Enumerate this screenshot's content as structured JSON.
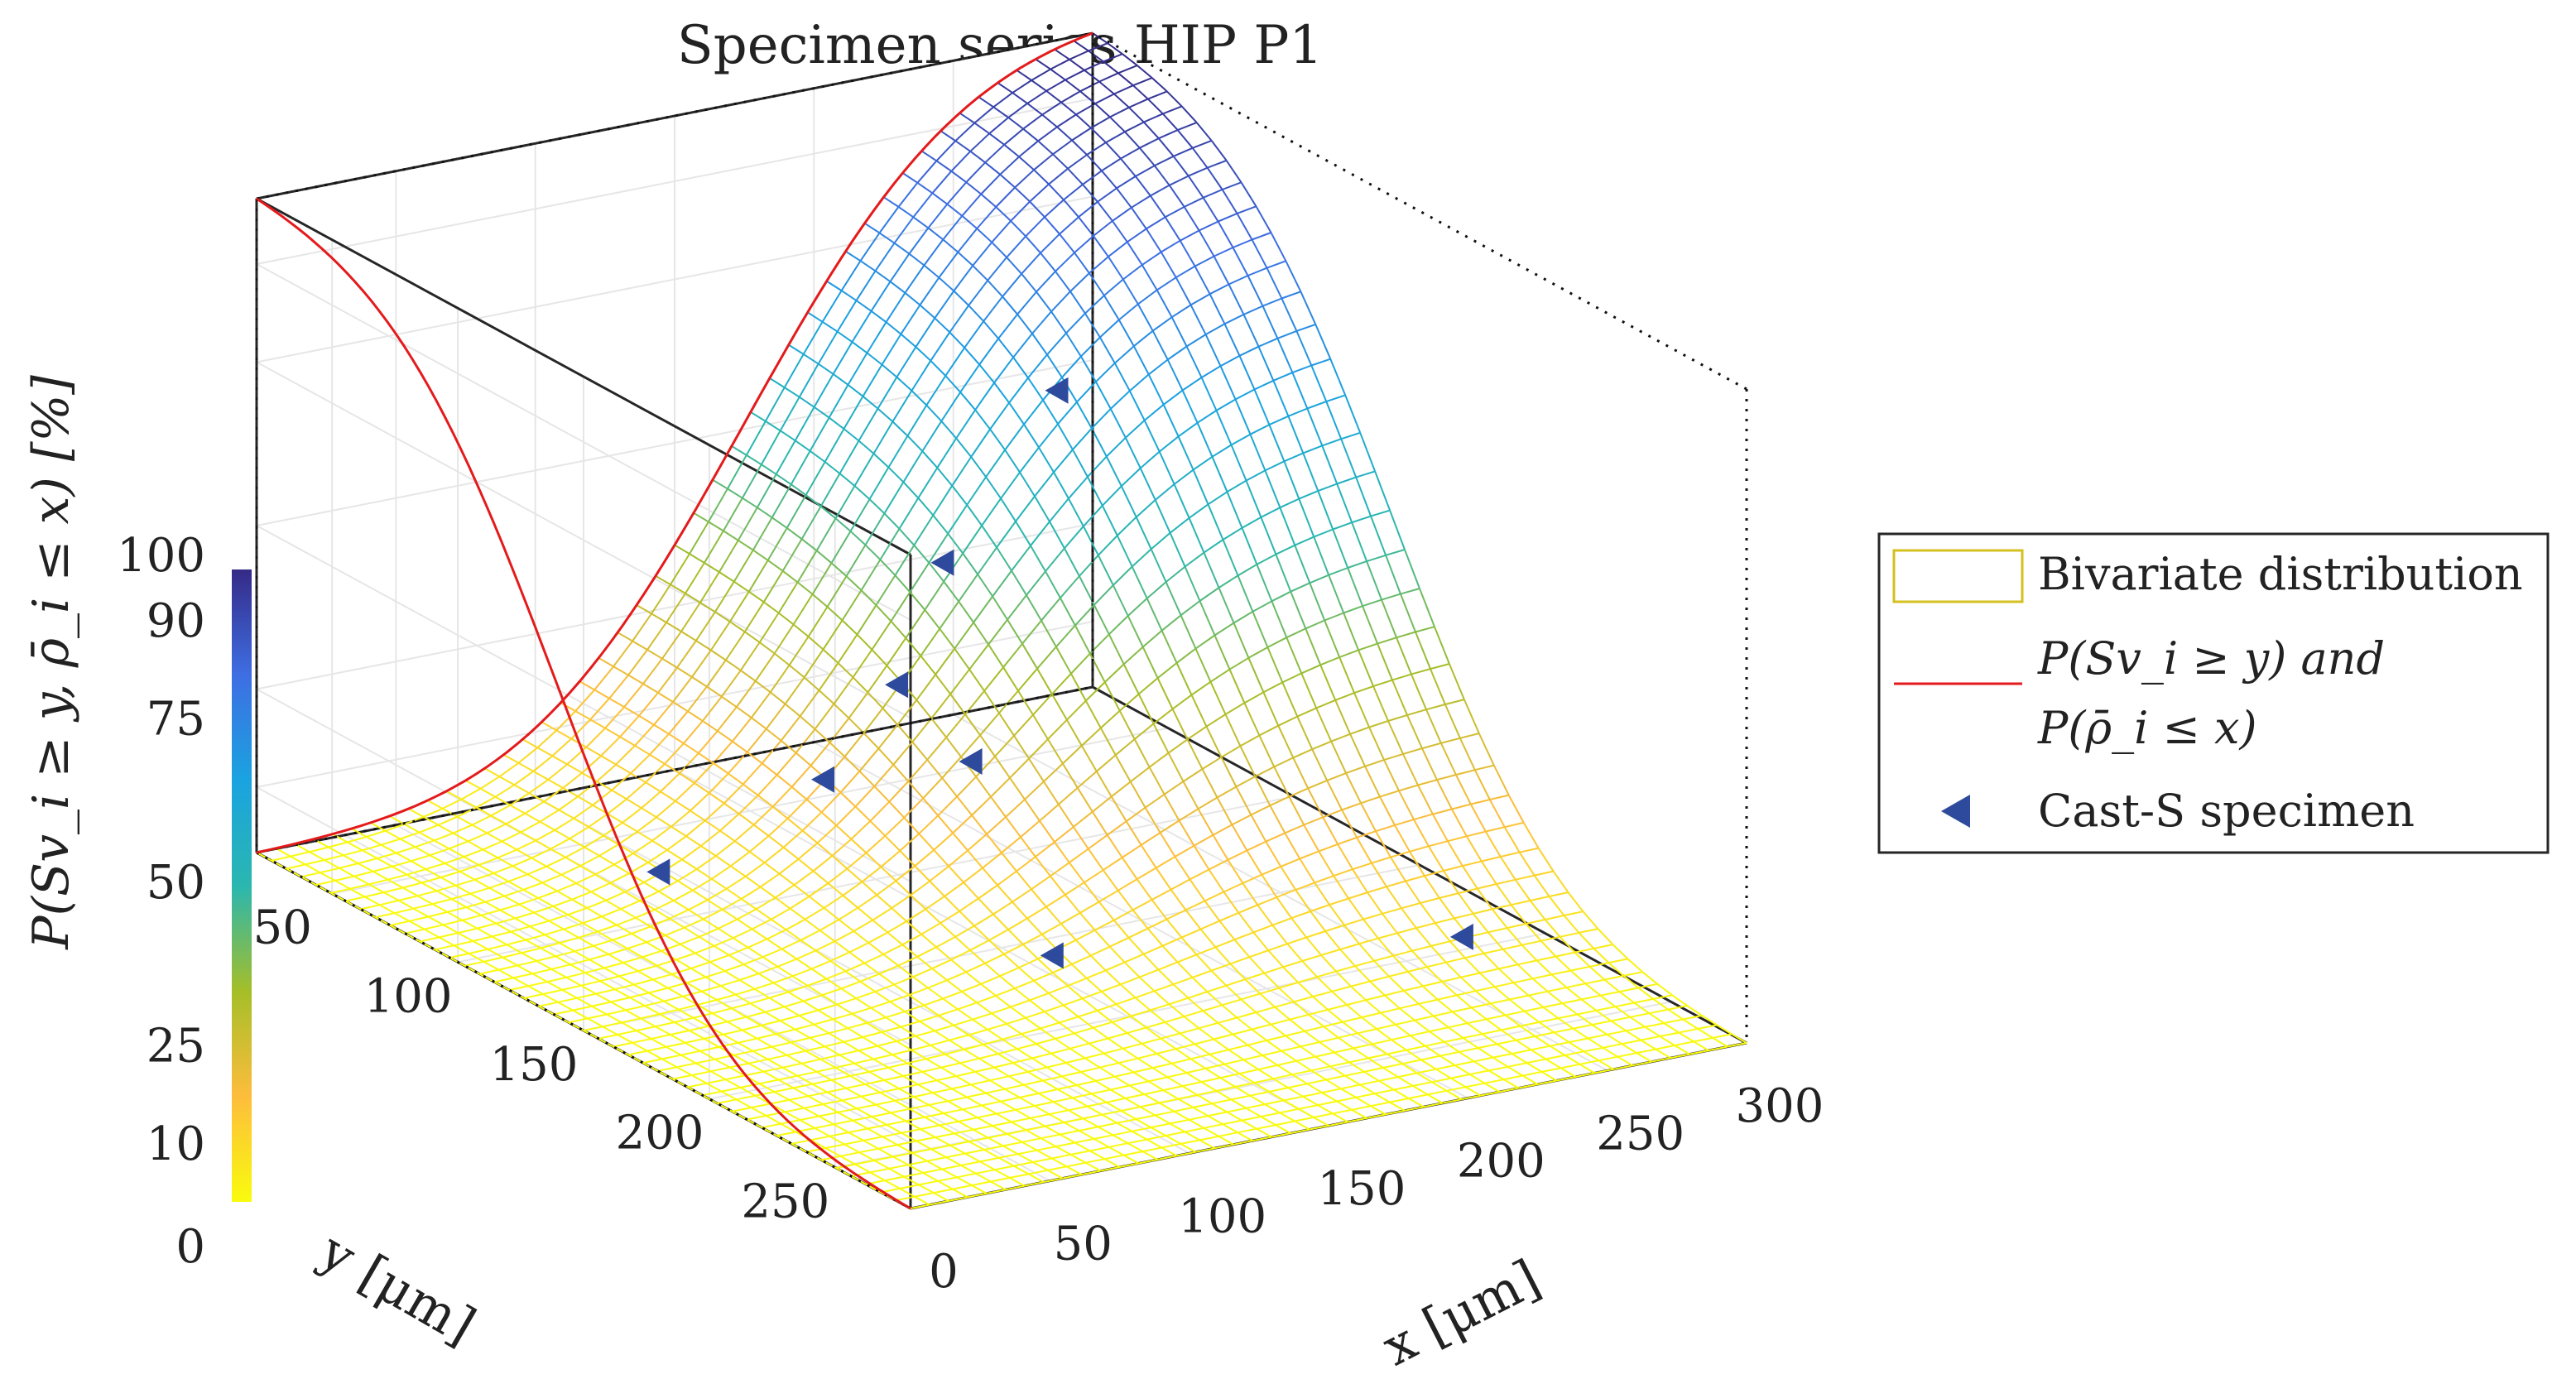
{
  "chart_data": {
    "type": "surface3d",
    "title": "Specimen series HIP P1",
    "xlabel": "x [μm]",
    "ylabel": "y [μm]",
    "zlabel": "P(Sv_i ≥ y, ρ̄_i ≤ x) [%]",
    "xlim": [
      0,
      300
    ],
    "ylim": [
      20,
      280
    ],
    "zlim": [
      0,
      100
    ],
    "x_ticks": [
      "0",
      "50",
      "100",
      "150",
      "200",
      "250",
      "300"
    ],
    "y_ticks": [
      "50",
      "100",
      "150",
      "200",
      "250"
    ],
    "z_ticks": [
      "0",
      "10",
      "25",
      "50",
      "75",
      "90",
      "100"
    ],
    "z_tick_values": [
      0,
      10,
      25,
      50,
      75,
      90,
      100
    ],
    "colorbar": {
      "min": 0,
      "max": 100,
      "colormap": [
        "#f9fb0e",
        "#fdbd3c",
        "#a5be28",
        "#2ab7b0",
        "#1aa3e0",
        "#3e6ee3",
        "#352a87"
      ]
    },
    "surface": {
      "label_x_marginal": "P(ρ̄_i ≤ x)",
      "x_marginal": {
        "dist": "normal",
        "mean": 175,
        "sd": 60
      },
      "label_y_marginal": "P(Sv_i ≥ y)",
      "y_marginal": {
        "dist": "normal_survival",
        "mean": 140,
        "sd": 50
      },
      "grid_x_lines": 45,
      "grid_y_lines": 45,
      "max_value": 100
    },
    "specimens": [
      {
        "x": 90,
        "y": 80,
        "z": 2
      },
      {
        "x": 150,
        "y": 170,
        "z": 3
      },
      {
        "x": 180,
        "y": 75,
        "z": 22
      },
      {
        "x": 175,
        "y": 110,
        "z": 18
      },
      {
        "x": 210,
        "y": 60,
        "z": 35
      },
      {
        "x": 140,
        "y": 90,
        "z": 14
      },
      {
        "x": 260,
        "y": 50,
        "z": 55
      },
      {
        "x": 270,
        "y": 200,
        "z": 2
      }
    ]
  },
  "legend": {
    "items": [
      {
        "label": "Bivariate distribution",
        "swatch_color": "#d4c020"
      },
      {
        "label": "P(Sv_i ≥ y) and",
        "label_line2": "P(ρ̄_i ≤ x)",
        "line_color": "#e41a1c"
      },
      {
        "label": "Cast-S specimen",
        "marker_color": "#2e4a9c"
      }
    ]
  },
  "colors": {
    "axis": "#262626",
    "grid": "#e6e6e6",
    "marginal_curve": "#e41a1c",
    "marker": "#2e4a9c"
  }
}
